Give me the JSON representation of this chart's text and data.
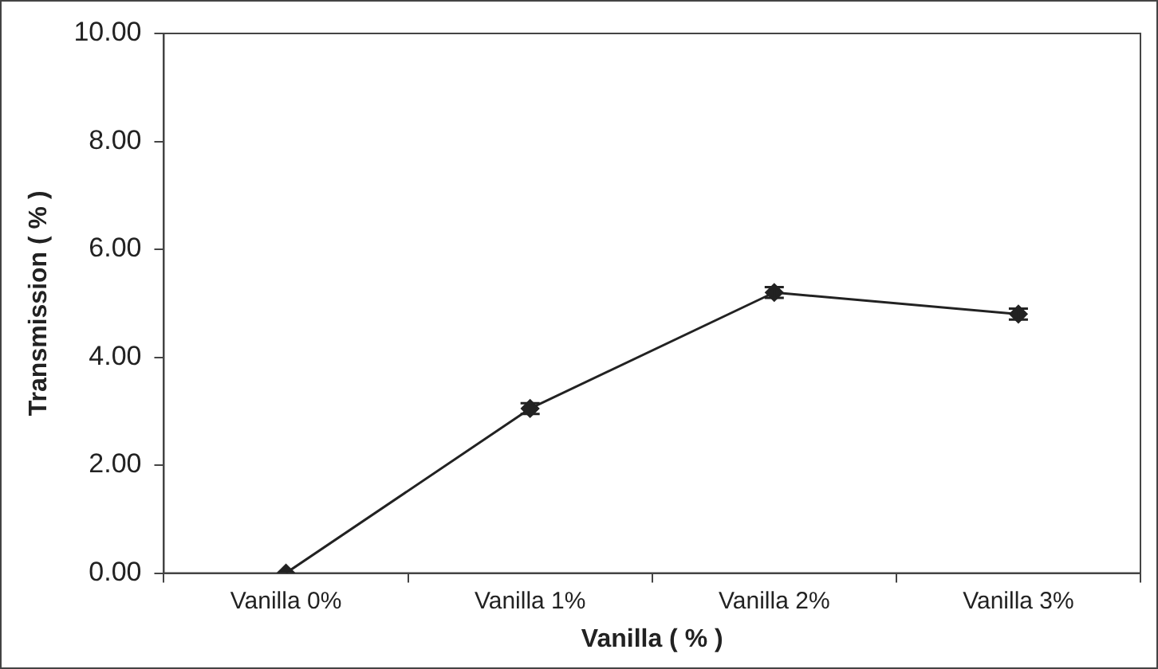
{
  "chart_data": {
    "type": "line",
    "xlabel": "Vanilla ( % )",
    "ylabel": "Transmission ( % )",
    "categories": [
      "Vanilla 0%",
      "Vanilla 1%",
      "Vanilla 2%",
      "Vanilla 3%"
    ],
    "series": [
      {
        "color": "#222222",
        "values": [
          0,
          3.05,
          5.2,
          4.8
        ],
        "errors": [
          null,
          0.1,
          0.1,
          0.1
        ]
      }
    ],
    "ylim": [
      0,
      10
    ],
    "yticks": [
      {
        "value": 0,
        "label": "0.00"
      },
      {
        "value": 2,
        "label": "2.00"
      },
      {
        "value": 4,
        "label": "4.00"
      },
      {
        "value": 6,
        "label": "6.00"
      },
      {
        "value": 8,
        "label": "8.00"
      },
      {
        "value": 10,
        "label": "10.00"
      }
    ],
    "grid": false,
    "legend": false,
    "marker": "diamond",
    "line_style": "solid"
  }
}
